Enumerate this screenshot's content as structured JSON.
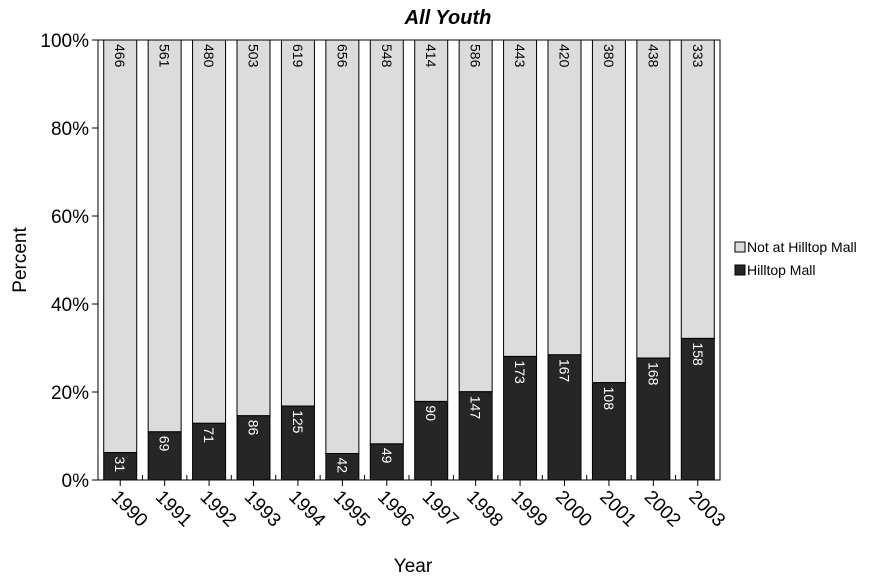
{
  "chart_data": {
    "type": "bar",
    "stacked": "percent",
    "title": "All Youth",
    "xlabel": "Year",
    "ylabel": "Percent",
    "ylim": [
      0,
      100
    ],
    "yticks": [
      "0%",
      "20%",
      "40%",
      "60%",
      "80%",
      "100%"
    ],
    "categories": [
      "1990",
      "1991",
      "1992",
      "1993",
      "1994",
      "1995",
      "1996",
      "1997",
      "1998",
      "1999",
      "2000",
      "2001",
      "2002",
      "2003"
    ],
    "series": [
      {
        "name": "Hilltop Mall",
        "color": "#262626",
        "values": [
          31,
          69,
          71,
          86,
          125,
          42,
          49,
          90,
          147,
          173,
          167,
          108,
          168,
          158
        ]
      },
      {
        "name": "Not at Hilltop Mall",
        "color": "#dcdcdc",
        "values": [
          466,
          561,
          480,
          503,
          619,
          656,
          548,
          414,
          586,
          443,
          420,
          380,
          438,
          333
        ]
      }
    ],
    "legend": {
      "position": "right",
      "order": [
        "Not at Hilltop Mall",
        "Hilltop Mall"
      ]
    },
    "grid": false
  }
}
